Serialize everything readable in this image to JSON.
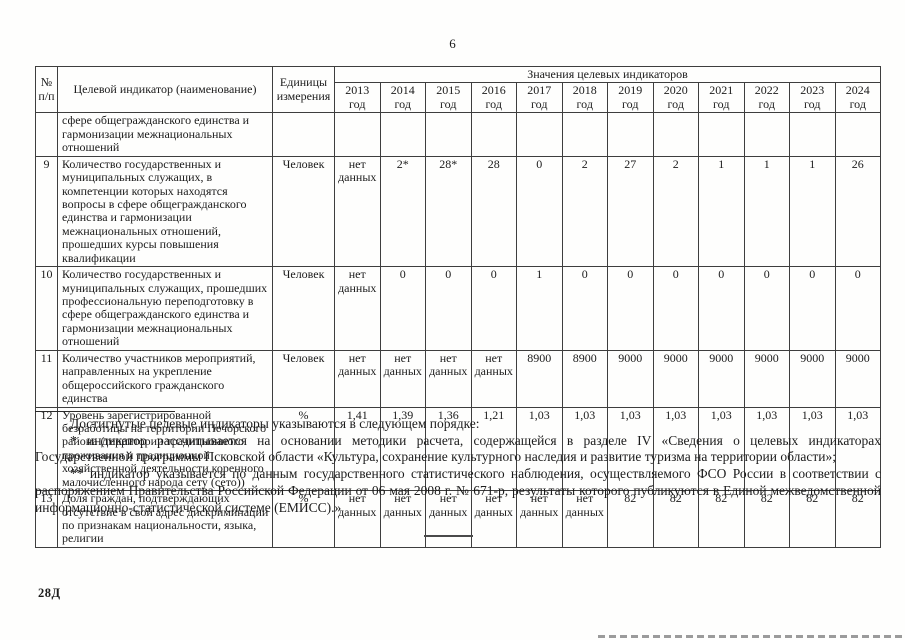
{
  "page": {
    "number": "6",
    "doc_code": "28Д"
  },
  "table": {
    "headers": {
      "num": "№ п/п",
      "indicator": "Целевой индикатор (наименование)",
      "units": "Единицы измерения",
      "values_group": "Значения целевых индикаторов"
    },
    "years": [
      "2013 год",
      "2014 год",
      "2015 год",
      "2016 год",
      "2017 год",
      "2018 год",
      "2019 год",
      "2020 год",
      "2021 год",
      "2022 год",
      "2023 год",
      "2024 год"
    ],
    "rows": [
      {
        "num": "",
        "indicator": "сфере общегражданского единства и гармонизации межнациональных отношений",
        "units": "",
        "values": [
          "",
          "",
          "",
          "",
          "",
          "",
          "",
          "",
          "",
          "",
          "",
          ""
        ]
      },
      {
        "num": "9",
        "indicator": "Количество государственных и муниципальных служащих, в компетенции которых находятся вопросы в сфере общегражданского единства и гармонизации межнациональных отношений, прошедших курсы повышения квалификации",
        "units": "Человек",
        "values": [
          "нет данных",
          "2*",
          "28*",
          "28",
          "0",
          "2",
          "27",
          "2",
          "1",
          "1",
          "1",
          "26"
        ]
      },
      {
        "num": "10",
        "indicator": "Количество государственных и муниципальных служащих, прошедших профессиональную переподготовку в сфере общегражданского единства и гармонизации межнациональных отношений",
        "units": "Человек",
        "values": [
          "нет данных",
          "0",
          "0",
          "0",
          "1",
          "0",
          "0",
          "0",
          "0",
          "0",
          "0",
          "0"
        ]
      },
      {
        "num": "11",
        "indicator": "Количество участников мероприятий, направленных на укрепление общероссийского гражданского единства",
        "units": "Человек",
        "values": [
          "нет данных",
          "нет данных",
          "нет данных",
          "нет данных",
          "8900",
          "8900",
          "9000",
          "9000",
          "9000",
          "9000",
          "9000",
          "9000"
        ]
      },
      {
        "num": "12",
        "indicator": "Уровень зарегистрированной безработицы на территории Печорского района (территории традиционного проживания и традиционной хозяйственной деятельности коренного малочисленного народа сету (сето))",
        "units": "%",
        "values": [
          "1,41",
          "1,39",
          "1,36",
          "1,21",
          "1,03",
          "1,03",
          "1,03",
          "1,03",
          "1,03",
          "1,03",
          "1,03",
          "1,03"
        ]
      },
      {
        "num": "13",
        "indicator": "Доля граждан, подтверждающих отсутствие в свой адрес дискриминации по признакам национальности, языка, религии",
        "units": "%",
        "values": [
          "нет данных",
          "нет данных",
          "нет данных",
          "нет данных",
          "нет данных",
          "нет данных",
          "82",
          "82",
          "82",
          "82",
          "82",
          "82"
        ]
      }
    ]
  },
  "footnotes": {
    "intro": "Достигнутые целевые индикаторы указываются в следующем порядке:",
    "fn1": "* индикатор рассчитывается на основании методики расчета, содержащейся в разделе IV «Сведения о целевых индикаторах Государственной программы Псковской области «Культура, сохранение культурного наследия и развитие туризма на территории области»;",
    "fn2": "** индикатор указывается по данным государственного статистического наблюдения, осуществляемого ФСО России в соответствии с распоряжением Правительства Российской Федерации от 06 мая 2008 г. № 671-р, результаты которого публикуются в Единой межведомственной информационно-статистической системе (ЕМИСС).»"
  }
}
